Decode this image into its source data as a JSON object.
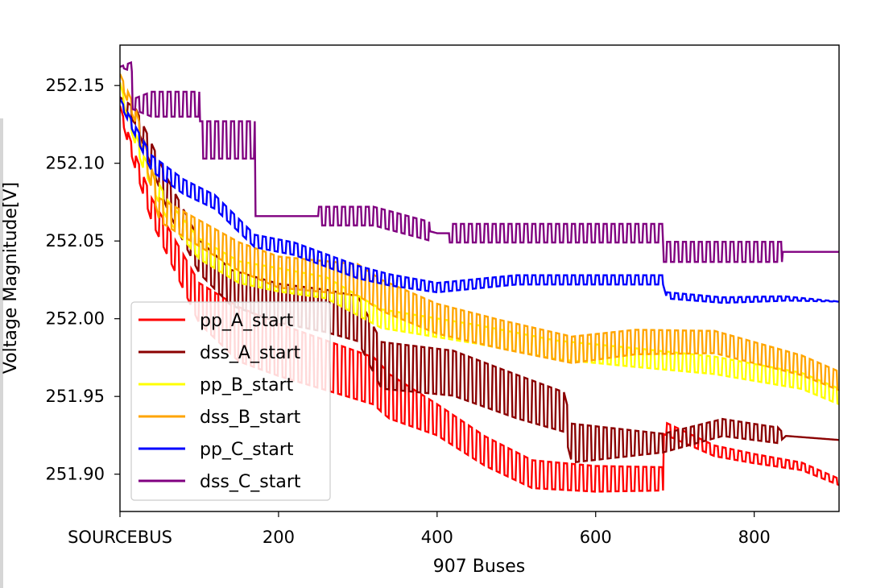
{
  "chart_data": {
    "type": "line",
    "title": "",
    "xlabel": "907 Buses",
    "ylabel": "Voltage Magnitude[V]",
    "xlim": [
      0,
      907
    ],
    "ylim": [
      251.876,
      252.176
    ],
    "x_ticks": [
      {
        "value": 0,
        "label": "SOURCEBUS"
      },
      {
        "value": 200,
        "label": "200"
      },
      {
        "value": 400,
        "label": "400"
      },
      {
        "value": 600,
        "label": "600"
      },
      {
        "value": 800,
        "label": "800"
      }
    ],
    "y_ticks": [
      251.9,
      251.95,
      252.0,
      252.05,
      252.1,
      252.15
    ],
    "legend_position": "lower-left",
    "series": [
      {
        "name": "pp_A_start",
        "color": "#ff0000",
        "knots": [
          [
            0,
            252.135
          ],
          [
            8,
            252.12
          ],
          [
            20,
            252.1
          ],
          [
            40,
            252.07
          ],
          [
            70,
            252.04
          ],
          [
            100,
            252.01
          ],
          [
            150,
            251.99
          ],
          [
            200,
            251.98
          ],
          [
            260,
            251.97
          ],
          [
            320,
            251.96
          ],
          [
            340,
            251.95
          ],
          [
            400,
            251.935
          ],
          [
            460,
            251.915
          ],
          [
            520,
            251.9
          ],
          [
            600,
            251.897
          ],
          [
            650,
            251.897
          ],
          [
            685,
            251.897
          ],
          [
            685,
            251.93
          ],
          [
            750,
            251.915
          ],
          [
            800,
            251.91
          ],
          [
            860,
            251.905
          ],
          [
            907,
            251.895
          ]
        ],
        "osc": [
          [
            0,
            0.004
          ],
          [
            40,
            0.015
          ],
          [
            150,
            0.035
          ],
          [
            330,
            0.03
          ],
          [
            400,
            0.02
          ],
          [
            685,
            0.015
          ],
          [
            686,
            0.008
          ],
          [
            907,
            0.004
          ]
        ]
      },
      {
        "name": "dss_A_start",
        "color": "#8b0000",
        "knots": [
          [
            0,
            252.14
          ],
          [
            20,
            252.13
          ],
          [
            60,
            252.08
          ],
          [
            100,
            252.04
          ],
          [
            140,
            252.02
          ],
          [
            200,
            252.01
          ],
          [
            260,
            252.005
          ],
          [
            300,
            252.0
          ],
          [
            330,
            251.97
          ],
          [
            420,
            251.965
          ],
          [
            500,
            251.95
          ],
          [
            560,
            251.94
          ],
          [
            570,
            251.92
          ],
          [
            620,
            251.92
          ],
          [
            685,
            251.92
          ],
          [
            760,
            251.93
          ],
          [
            830,
            251.925
          ],
          [
            907,
            251.922
          ]
        ],
        "osc": [
          [
            0,
            0.005
          ],
          [
            60,
            0.02
          ],
          [
            200,
            0.025
          ],
          [
            330,
            0.03
          ],
          [
            500,
            0.028
          ],
          [
            570,
            0.025
          ],
          [
            685,
            0.012
          ],
          [
            830,
            0.01
          ],
          [
            840,
            0.0
          ],
          [
            907,
            0.0
          ]
        ]
      },
      {
        "name": "pp_B_start",
        "color": "#ffff00",
        "knots": [
          [
            0,
            252.15
          ],
          [
            10,
            252.13
          ],
          [
            30,
            252.1
          ],
          [
            60,
            252.07
          ],
          [
            100,
            252.045
          ],
          [
            150,
            252.03
          ],
          [
            200,
            252.025
          ],
          [
            260,
            252.02
          ],
          [
            330,
            252.0
          ],
          [
            450,
            251.99
          ],
          [
            550,
            251.98
          ],
          [
            650,
            251.975
          ],
          [
            750,
            251.97
          ],
          [
            860,
            251.96
          ],
          [
            907,
            251.95
          ]
        ],
        "osc": [
          [
            0,
            0.004
          ],
          [
            50,
            0.012
          ],
          [
            200,
            0.015
          ],
          [
            330,
            0.012
          ],
          [
            650,
            0.012
          ],
          [
            907,
            0.01
          ]
        ]
      },
      {
        "name": "dss_B_start",
        "color": "#ffa500",
        "knots": [
          [
            0,
            252.155
          ],
          [
            20,
            252.13
          ],
          [
            50,
            252.07
          ],
          [
            100,
            252.055
          ],
          [
            150,
            252.04
          ],
          [
            200,
            252.03
          ],
          [
            300,
            252.025
          ],
          [
            330,
            252.015
          ],
          [
            400,
            252.0
          ],
          [
            480,
            251.99
          ],
          [
            570,
            251.98
          ],
          [
            650,
            251.985
          ],
          [
            750,
            251.985
          ],
          [
            860,
            251.97
          ],
          [
            907,
            251.96
          ]
        ],
        "osc": [
          [
            0,
            0.005
          ],
          [
            50,
            0.015
          ],
          [
            200,
            0.02
          ],
          [
            330,
            0.02
          ],
          [
            500,
            0.018
          ],
          [
            907,
            0.012
          ]
        ]
      },
      {
        "name": "pp_C_start",
        "color": "#0000ff",
        "knots": [
          [
            0,
            252.14
          ],
          [
            15,
            252.125
          ],
          [
            40,
            252.1
          ],
          [
            80,
            252.085
          ],
          [
            120,
            252.075
          ],
          [
            170,
            252.05
          ],
          [
            220,
            252.045
          ],
          [
            300,
            252.03
          ],
          [
            340,
            252.025
          ],
          [
            400,
            252.02
          ],
          [
            500,
            252.025
          ],
          [
            600,
            252.025
          ],
          [
            685,
            252.025
          ],
          [
            690,
            252.015
          ],
          [
            760,
            252.012
          ],
          [
            840,
            252.013
          ],
          [
            907,
            252.011
          ]
        ],
        "osc": [
          [
            0,
            0.003
          ],
          [
            40,
            0.01
          ],
          [
            170,
            0.008
          ],
          [
            300,
            0.008
          ],
          [
            400,
            0.006
          ],
          [
            685,
            0.006
          ],
          [
            690,
            0.004
          ],
          [
            830,
            0.003
          ],
          [
            907,
            0.0
          ]
        ]
      },
      {
        "name": "dss_C_start",
        "color": "#800080",
        "knots": [
          [
            0,
            252.162
          ],
          [
            15,
            252.162
          ],
          [
            16,
            252.138
          ],
          [
            100,
            252.138
          ],
          [
            101,
            252.115
          ],
          [
            170,
            252.115
          ],
          [
            171,
            252.066
          ],
          [
            320,
            252.066
          ],
          [
            400,
            252.055
          ],
          [
            420,
            252.055
          ],
          [
            500,
            252.055
          ],
          [
            685,
            252.055
          ],
          [
            686,
            252.043
          ],
          [
            907,
            252.043
          ]
        ],
        "osc": [
          [
            0,
            0.0
          ],
          [
            40,
            0.016
          ],
          [
            100,
            0.016
          ],
          [
            101,
            0.024
          ],
          [
            170,
            0.024
          ],
          [
            171,
            0.0
          ],
          [
            250,
            0.0
          ],
          [
            251,
            0.012
          ],
          [
            390,
            0.012
          ],
          [
            391,
            0.0
          ],
          [
            415,
            0.0
          ],
          [
            416,
            0.012
          ],
          [
            685,
            0.012
          ],
          [
            686,
            0.013
          ],
          [
            835,
            0.013
          ],
          [
            836,
            0.0
          ],
          [
            907,
            0.0
          ]
        ]
      }
    ]
  }
}
